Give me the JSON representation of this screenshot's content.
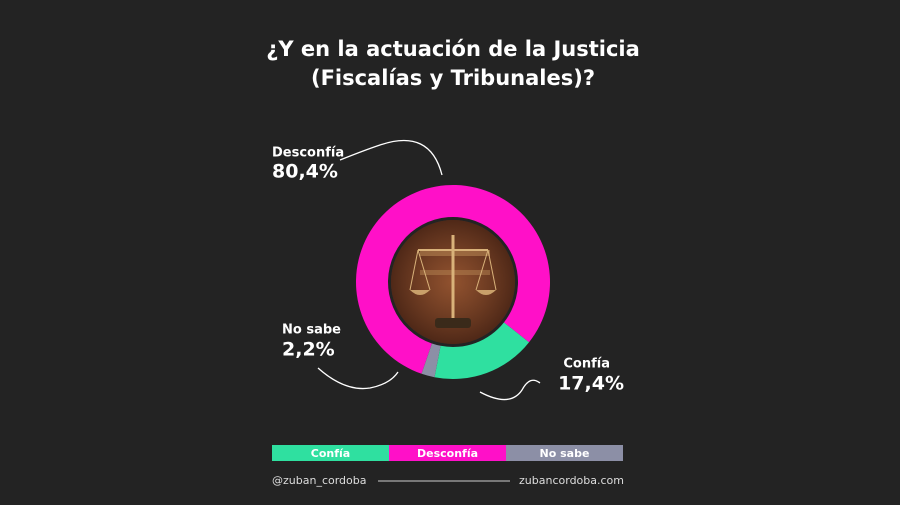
{
  "chart_data": {
    "type": "donut",
    "title": [
      "¿Y en la actuación de la Justicia",
      "(Fiscalías y Tribunales)?"
    ],
    "categories": [
      "Confía",
      "Desconfía",
      "No sabe"
    ],
    "values": [
      17.4,
      80.4,
      2.2
    ],
    "value_labels": [
      "17,4%",
      "80,4%",
      "2,2%"
    ],
    "colors": [
      "#2fe0a0",
      "#ff10c8",
      "#8c8fa6"
    ],
    "legend": "bottom"
  },
  "footer": {
    "left": "@zuban_cordoba",
    "right": "zubancordoba.com"
  }
}
